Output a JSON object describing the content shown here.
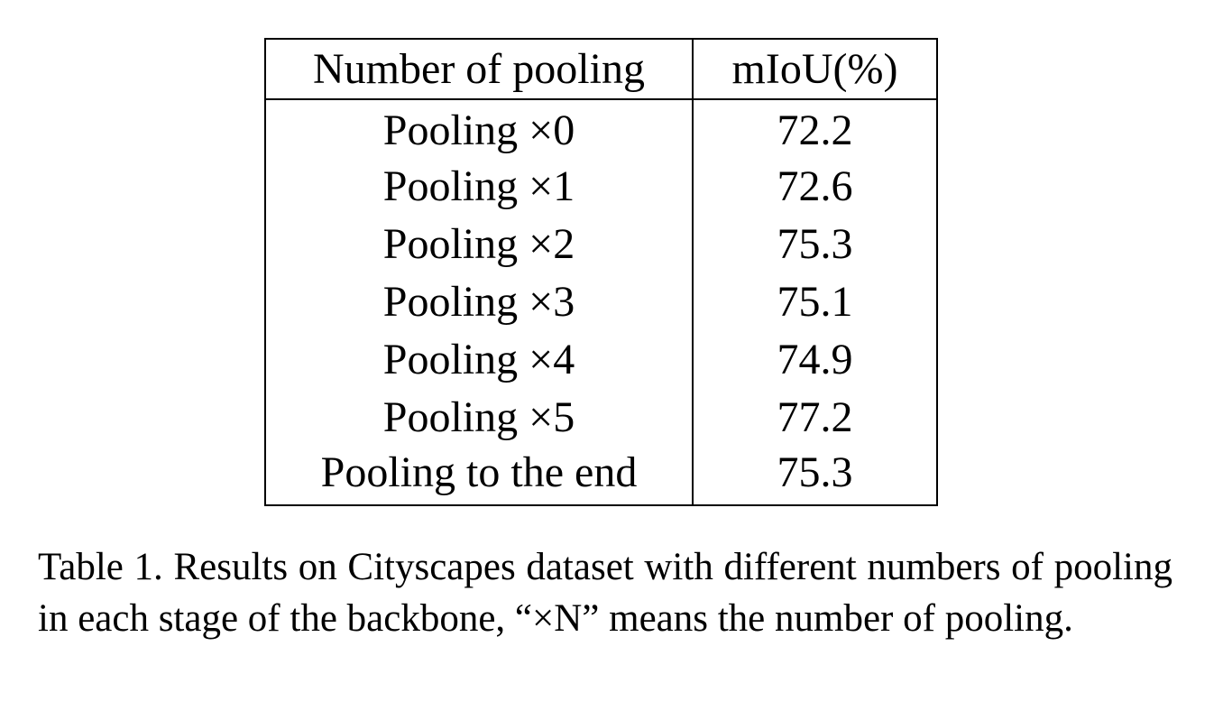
{
  "table": {
    "headers": [
      "Number of pooling",
      "mIoU(%)"
    ],
    "rows": [
      [
        "Pooling ×0",
        "72.2"
      ],
      [
        "Pooling ×1",
        "72.6"
      ],
      [
        "Pooling ×2",
        "75.3"
      ],
      [
        "Pooling ×3",
        "75.1"
      ],
      [
        "Pooling ×4",
        "74.9"
      ],
      [
        "Pooling ×5",
        "77.2"
      ],
      [
        "Pooling to the end",
        "75.3"
      ]
    ]
  },
  "caption": "Table 1. Results on Cityscapes dataset with different numbers of pooling in each stage of the backbone, “×N” means the number of pooling."
}
